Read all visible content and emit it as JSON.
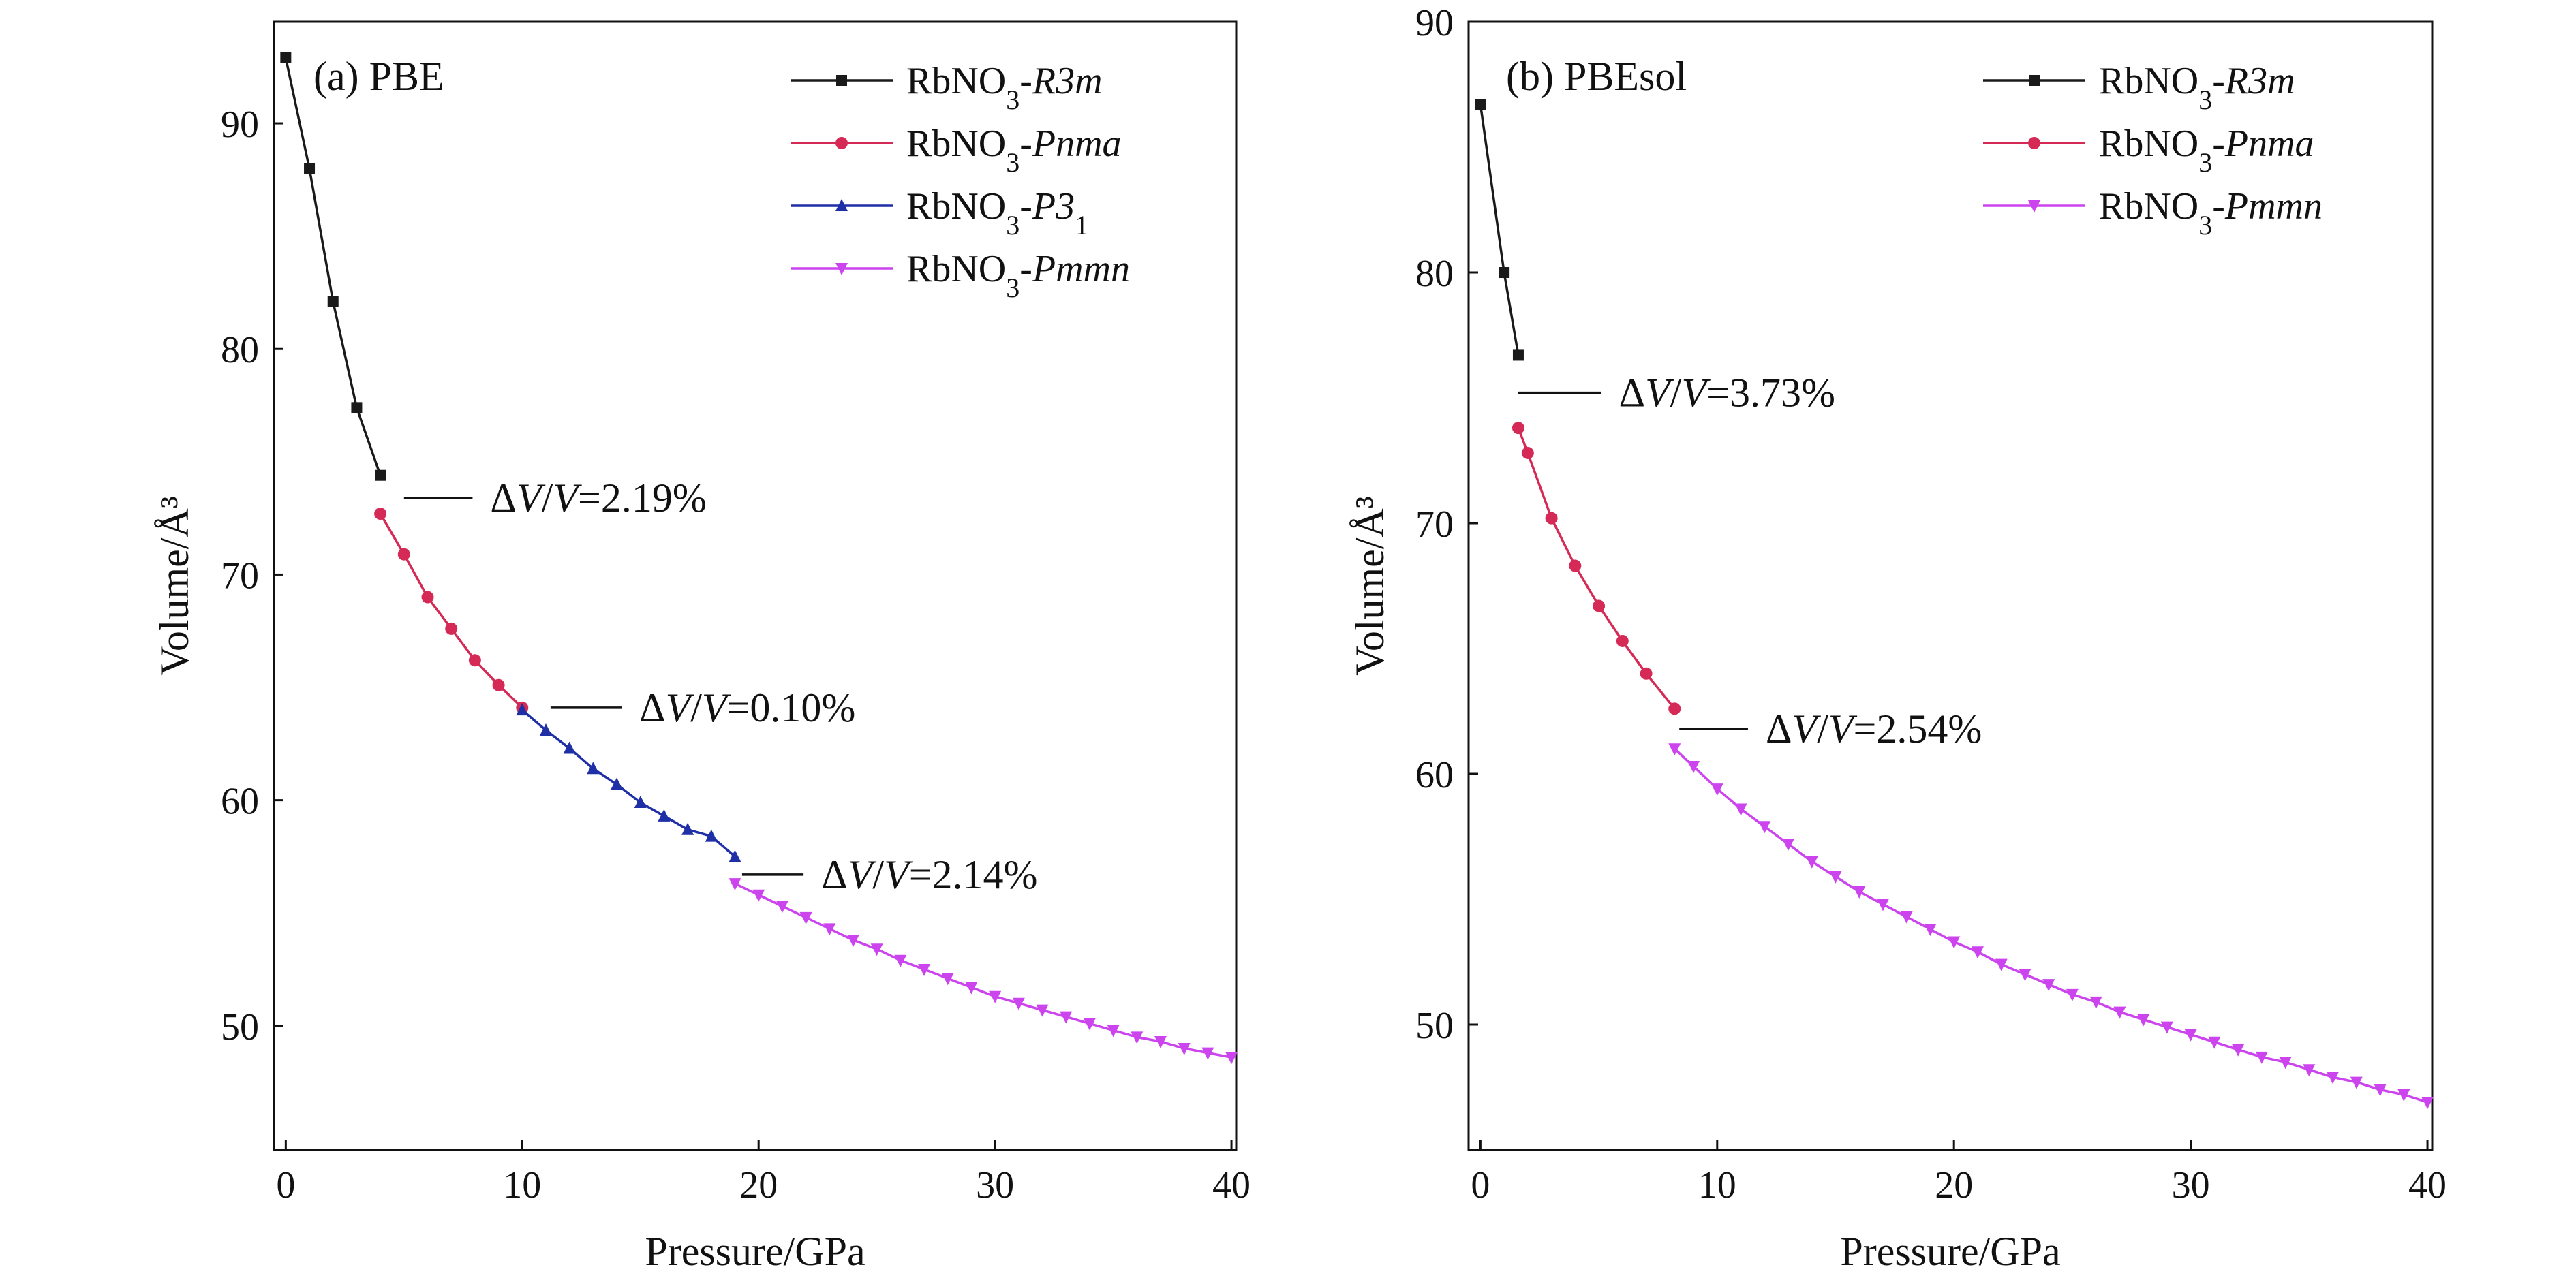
{
  "chart_data": [
    {
      "type": "line",
      "panel_label": "(a) PBE",
      "xlabel": "Pressure/GPa",
      "ylabel": "Volume/Å³",
      "xlim": [
        -0.5,
        40.2
      ],
      "ylim": [
        44.5,
        94.5
      ],
      "xticks": [
        0,
        10,
        20,
        30,
        40
      ],
      "yticks": [
        50,
        60,
        70,
        80,
        90
      ],
      "grid": false,
      "legend_position": "top-right",
      "series": [
        {
          "name": "RbNO₃-R3m",
          "legend_parts": [
            "RbNO",
            "3",
            "-",
            "R3m"
          ],
          "color": "#1a1a1a",
          "marker": "square",
          "x": [
            0,
            1,
            2,
            3,
            4
          ],
          "y": [
            92.9,
            88.0,
            82.1,
            77.4,
            74.4
          ]
        },
        {
          "name": "RbNO₃-Pnma",
          "legend_parts": [
            "RbNO",
            "3",
            "-",
            "Pnma"
          ],
          "color": "#d42a55",
          "marker": "circle",
          "x": [
            4,
            5,
            6,
            7,
            8,
            9,
            10
          ],
          "y": [
            72.7,
            70.9,
            69.0,
            67.6,
            66.2,
            65.1,
            64.1
          ]
        },
        {
          "name": "RbNO₃-P3₁",
          "legend_parts": [
            "RbNO",
            "3",
            "-",
            "P3",
            "1"
          ],
          "color": "#1f2fa6",
          "marker": "triangle-up",
          "x": [
            10,
            11,
            12,
            13,
            14,
            15,
            16,
            17,
            18,
            19
          ],
          "y": [
            64.0,
            63.1,
            62.3,
            61.4,
            60.7,
            59.9,
            59.3,
            58.7,
            58.4,
            57.5
          ]
        },
        {
          "name": "RbNO₃-Pmmn",
          "legend_parts": [
            "RbNO",
            "3",
            "-",
            "Pmmn"
          ],
          "color": "#cc44ee",
          "marker": "triangle-down",
          "x": [
            19,
            20,
            21,
            22,
            23,
            24,
            25,
            26,
            27,
            28,
            29,
            30,
            31,
            32,
            33,
            34,
            35,
            36,
            37,
            38,
            39,
            40
          ],
          "y": [
            56.3,
            55.8,
            55.3,
            54.8,
            54.3,
            53.8,
            53.4,
            52.9,
            52.5,
            52.1,
            51.7,
            51.3,
            51.0,
            50.7,
            50.4,
            50.1,
            49.8,
            49.5,
            49.3,
            49.0,
            48.8,
            48.6
          ]
        }
      ],
      "annotations": [
        {
          "text_parts": [
            "Δ",
            "V",
            "/",
            "V",
            "=2.19%"
          ],
          "line_x": [
            5.0,
            7.9
          ],
          "line_y": 73.4
        },
        {
          "text_parts": [
            "Δ",
            "V",
            "/",
            "V",
            "=0.10%"
          ],
          "line_x": [
            11.2,
            14.2
          ],
          "line_y": 64.1
        },
        {
          "text_parts": [
            "Δ",
            "V",
            "/",
            "V",
            "=2.14%"
          ],
          "line_x": [
            19.3,
            21.9
          ],
          "line_y": 56.7
        }
      ]
    },
    {
      "type": "line",
      "panel_label": "(b) PBEsol",
      "xlabel": "Pressure/GPa",
      "ylabel": "Volume/Å³",
      "xlim": [
        -0.5,
        40.2
      ],
      "ylim": [
        45,
        90
      ],
      "xticks": [
        0,
        10,
        20,
        30,
        40
      ],
      "yticks": [
        50,
        60,
        70,
        80,
        90
      ],
      "grid": false,
      "legend_position": "top-right",
      "series": [
        {
          "name": "RbNO₃-R3m",
          "legend_parts": [
            "RbNO",
            "3",
            "-",
            "R3m"
          ],
          "color": "#1a1a1a",
          "marker": "square",
          "x": [
            0,
            1,
            1.6
          ],
          "y": [
            86.7,
            80.0,
            76.7
          ]
        },
        {
          "name": "RbNO₃-Pnma",
          "legend_parts": [
            "RbNO",
            "3",
            "-",
            "Pnma"
          ],
          "color": "#d42a55",
          "marker": "circle",
          "x": [
            1.6,
            2,
            3,
            4,
            5,
            6,
            7,
            8.2
          ],
          "y": [
            73.8,
            72.8,
            70.2,
            68.3,
            66.7,
            65.3,
            64.0,
            62.6
          ]
        },
        {
          "name": "RbNO₃-Pmmn",
          "legend_parts": [
            "RbNO",
            "3",
            "-",
            "Pmmn"
          ],
          "color": "#cc44ee",
          "marker": "triangle-down",
          "x": [
            8.2,
            9,
            10,
            11,
            12,
            13,
            14,
            15,
            16,
            17,
            18,
            19,
            20,
            21,
            22,
            23,
            24,
            25,
            26,
            27,
            28,
            29,
            30,
            31,
            32,
            33,
            34,
            35,
            36,
            37,
            38,
            39,
            40
          ],
          "y": [
            61.0,
            60.3,
            59.4,
            58.6,
            57.9,
            57.2,
            56.5,
            55.9,
            55.3,
            54.8,
            54.3,
            53.8,
            53.3,
            52.9,
            52.4,
            52.0,
            51.6,
            51.2,
            50.9,
            50.5,
            50.2,
            49.9,
            49.6,
            49.3,
            49.0,
            48.7,
            48.5,
            48.2,
            47.9,
            47.7,
            47.4,
            47.2,
            46.9
          ]
        }
      ],
      "annotations": [
        {
          "text_parts": [
            "Δ",
            "V",
            "/",
            "V",
            "=3.73%"
          ],
          "line_x": [
            1.6,
            5.1
          ],
          "line_y": 75.2
        },
        {
          "text_parts": [
            "Δ",
            "V",
            "/",
            "V",
            "=2.54%"
          ],
          "line_x": [
            8.4,
            11.3
          ],
          "line_y": 61.8
        }
      ]
    }
  ]
}
